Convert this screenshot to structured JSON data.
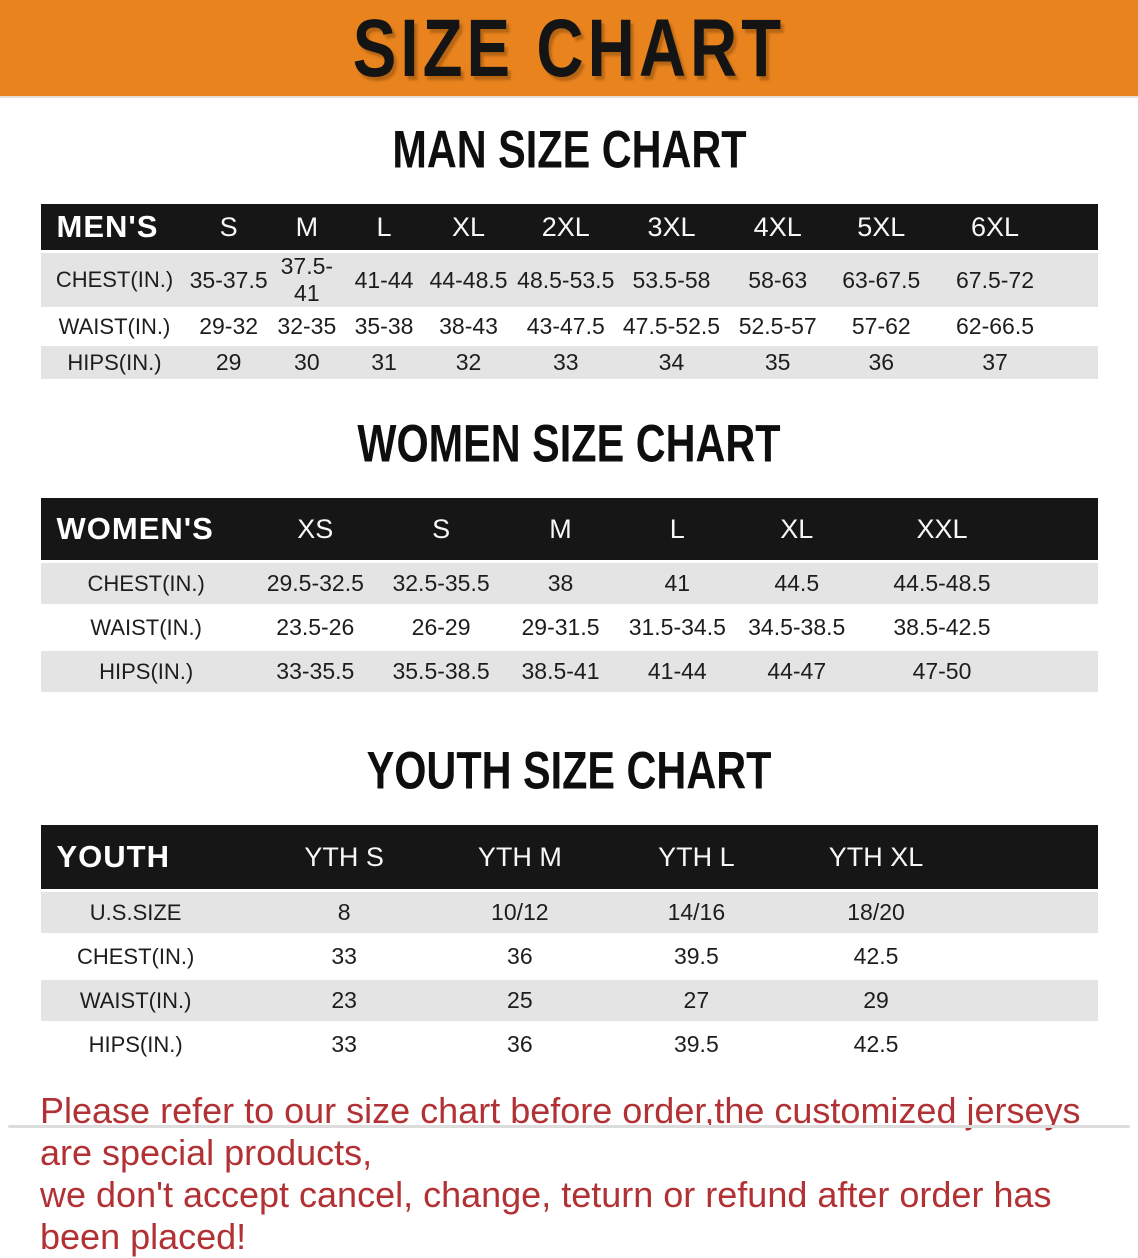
{
  "banner": {
    "title": "SIZE CHART"
  },
  "colors": {
    "banner_bg": "#E8831E",
    "header_bg": "#161616",
    "stripe": "#E4E4E4",
    "note_red": "#B13134"
  },
  "men": {
    "section_title": "MAN SIZE CHART",
    "columns": [
      "MEN'S",
      "S",
      "M",
      "L",
      "XL",
      "2XL",
      "3XL",
      "4XL",
      "5XL",
      "6XL"
    ],
    "rows": [
      {
        "label": "CHEST(IN.)",
        "values": [
          "35-37.5",
          "37.5-41",
          "41-44",
          "44-48.5",
          "48.5-53.5",
          "53.5-58",
          "58-63",
          "63-67.5",
          "67.5-72"
        ]
      },
      {
        "label": "WAIST(IN.)",
        "values": [
          "29-32",
          "32-35",
          "35-38",
          "38-43",
          "43-47.5",
          "47.5-52.5",
          "52.5-57",
          "57-62",
          "62-66.5"
        ]
      },
      {
        "label": "HIPS(IN.)",
        "values": [
          "29",
          "30",
          "31",
          "32",
          "33",
          "34",
          "35",
          "36",
          "37"
        ]
      }
    ]
  },
  "women": {
    "section_title": "WOMEN SIZE CHART",
    "columns": [
      "WOMEN'S",
      "XS",
      "S",
      "M",
      "L",
      "XL",
      "XXL"
    ],
    "rows": [
      {
        "label": "CHEST(IN.)",
        "values": [
          "29.5-32.5",
          "32.5-35.5",
          "38",
          "41",
          "44.5",
          "44.5-48.5"
        ]
      },
      {
        "label": "WAIST(IN.)",
        "values": [
          "23.5-26",
          "26-29",
          "29-31.5",
          "31.5-34.5",
          "34.5-38.5",
          "38.5-42.5"
        ]
      },
      {
        "label": "HIPS(IN.)",
        "values": [
          "33-35.5",
          "35.5-38.5",
          "38.5-41",
          "41-44",
          "44-47",
          "47-50"
        ]
      }
    ]
  },
  "youth": {
    "section_title": "YOUTH SIZE CHART",
    "columns": [
      "YOUTH",
      "YTH S",
      "YTH M",
      "YTH L",
      "YTH XL"
    ],
    "rows": [
      {
        "label": "U.S.SIZE",
        "values": [
          "8",
          "10/12",
          "14/16",
          "18/20"
        ]
      },
      {
        "label": "CHEST(IN.)",
        "values": [
          "33",
          "36",
          "39.5",
          "42.5"
        ]
      },
      {
        "label": "WAIST(IN.)",
        "values": [
          "23",
          "25",
          "27",
          "29"
        ]
      },
      {
        "label": "HIPS(IN.)",
        "values": [
          "33",
          "36",
          "39.5",
          "42.5"
        ]
      }
    ]
  },
  "note": {
    "line1": "Please refer to our size chart before order,the customized jerseys are special products,",
    "line2": "we don't accept cancel, change, teturn or refund after order has been placed!"
  }
}
